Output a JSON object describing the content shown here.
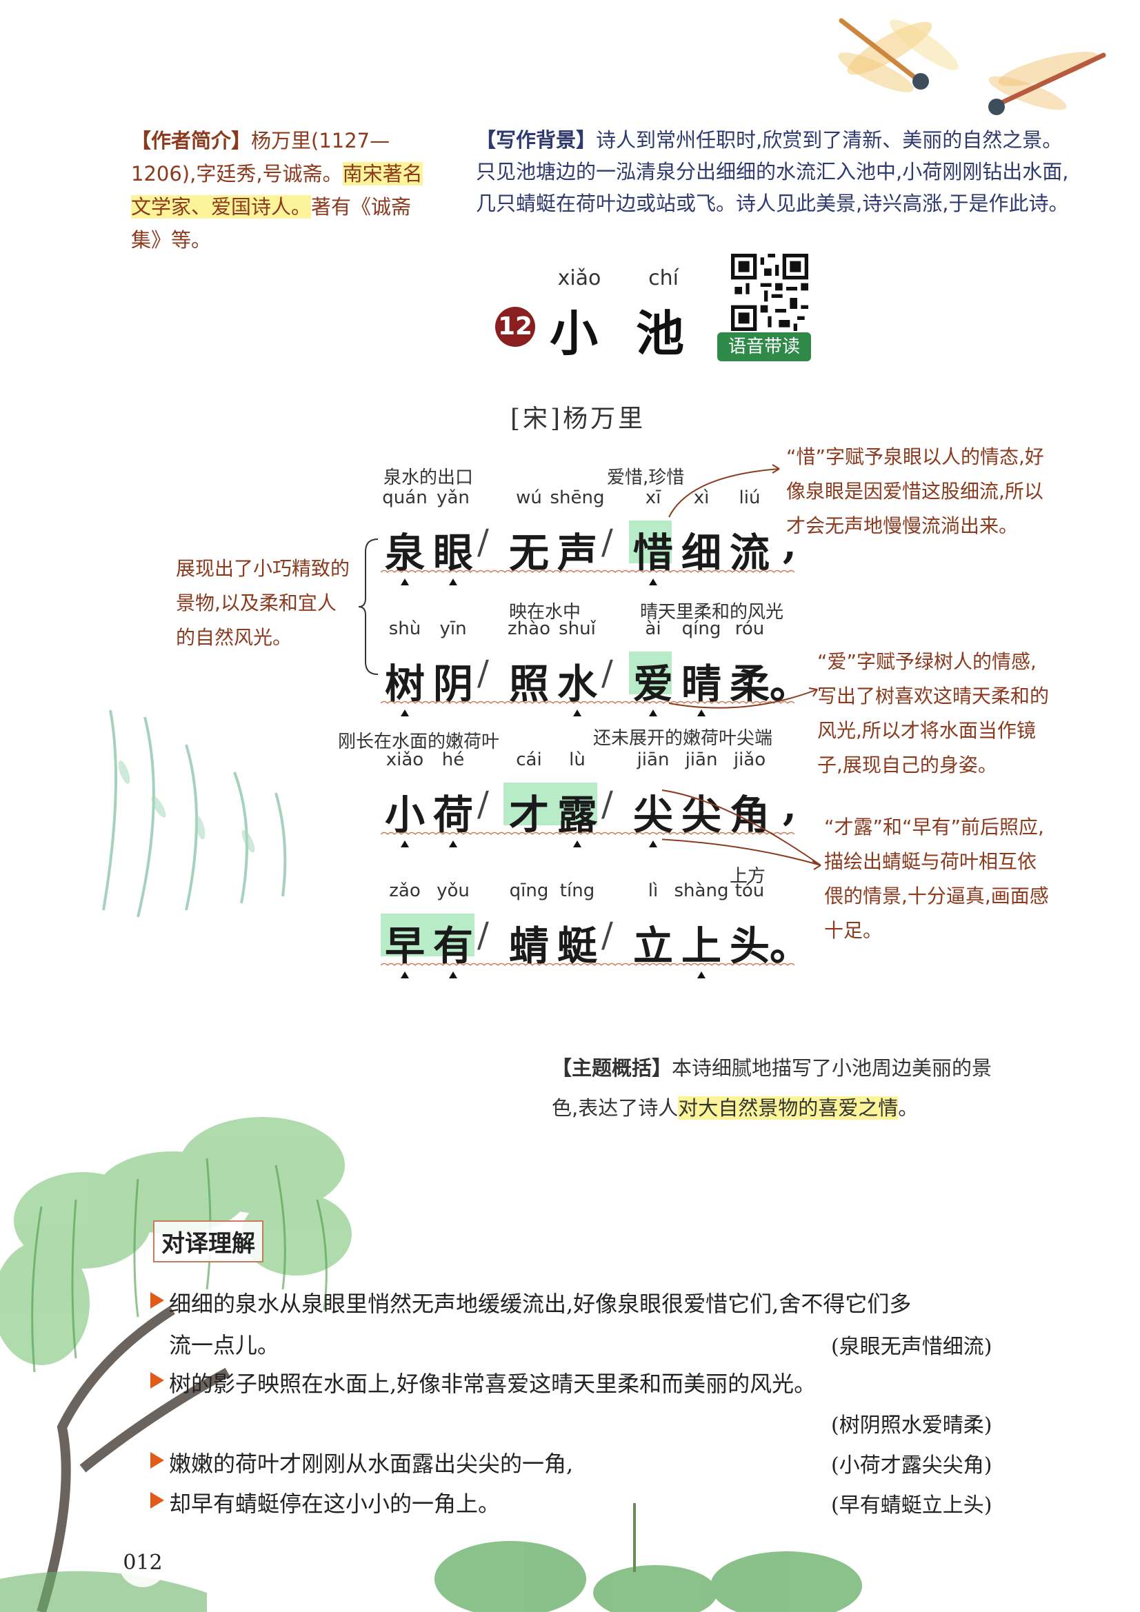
{
  "author_intro": {
    "tag": "【作者简介】",
    "text_a": "杨万里(1127—1206),字廷秀,号诚斋。",
    "text_hl": "南宋著名文学家、爱国诗人。",
    "text_b": "著有《诚斋集》等。"
  },
  "background": {
    "tag": "【写作背景】",
    "text": "诗人到常州任职时,欣赏到了清新、美丽的自然之景。只见池塘边的一泓清泉分出细细的水流汇入池中,小荷刚刚钻出水面,几只蜻蜓在荷叶边或站或飞。诗人见此美景,诗兴高涨,于是作此诗。"
  },
  "title": {
    "number": "12",
    "char1": "小",
    "char2": "池",
    "pinyin1": "xiǎo",
    "pinyin2": "chí",
    "audio_label": "语音带读"
  },
  "author_line": "[宋]杨万里",
  "poem": {
    "line1": {
      "chars": [
        "泉",
        "眼",
        "无",
        "声",
        "惜",
        "细",
        "流"
      ],
      "pinyin": [
        "quán",
        "yǎn",
        "wú",
        "shēng",
        "xī",
        "xì",
        "liú"
      ],
      "punct": ",",
      "gloss1": "泉水的出口",
      "gloss2": "爱惜,珍惜"
    },
    "line2": {
      "chars": [
        "树",
        "阴",
        "照",
        "水",
        "爱",
        "晴",
        "柔"
      ],
      "pinyin": [
        "shù",
        "yīn",
        "zhào",
        "shuǐ",
        "ài",
        "qíng",
        "róu"
      ],
      "punct": "。",
      "gloss1": "映在水中",
      "gloss2": "晴天里柔和的风光"
    },
    "line3": {
      "chars": [
        "小",
        "荷",
        "才",
        "露",
        "尖",
        "尖",
        "角"
      ],
      "pinyin": [
        "xiǎo",
        "hé",
        "cái",
        "lù",
        "jiān",
        "jiān",
        "jiǎo"
      ],
      "punct": ",",
      "gloss1": "刚长在水面的嫩荷叶",
      "gloss2": "还未展开的嫩荷叶尖端"
    },
    "line4": {
      "chars": [
        "早",
        "有",
        "蜻",
        "蜓",
        "立",
        "上",
        "头"
      ],
      "pinyin": [
        "zǎo",
        "yǒu",
        "qīng",
        "tíng",
        "lì",
        "shàng",
        "tóu"
      ],
      "punct": "。",
      "gloss1": "上方"
    }
  },
  "left_note": "展现出了小巧精致的景物,以及柔和宜人的自然风光。",
  "right_notes": {
    "n1": "“惜”字赋予泉眼以人的情态,好像泉眼是因爱惜这股细流,所以才会无声地慢慢流淌出来。",
    "n2": "“爱”字赋予绿树人的情感,写出了树喜欢这晴天柔和的风光,所以才将水面当作镜子,展现自己的身姿。",
    "n3": "“才露”和“早有”前后照应,描绘出蜻蜓与荷叶相互依偎的情景,十分逼真,画面感十足。"
  },
  "theme": {
    "tag": "【主题概括】",
    "text_a": "本诗细腻地描写了小池周边美丽的景色,表达了诗人",
    "text_hl": "对大自然景物的喜爱之情",
    "text_b": "。"
  },
  "translation": {
    "heading": "对译理解",
    "items": [
      {
        "text": "细细的泉水从泉眼里悄然无声地缓缓流出,好像泉眼很爱惜它们,舍不得它们多",
        "text2": "流一点儿。",
        "src": "(泉眼无声惜细流)"
      },
      {
        "text": "树的影子映照在水面上,好像非常喜爱这晴天里柔和而美丽的风光。",
        "src": "(树阴照水爱晴柔)"
      },
      {
        "text": "嫩嫩的荷叶才刚刚从水面露出尖尖的一角,",
        "src": "(小荷才露尖尖角)"
      },
      {
        "text": "却早有蜻蜓停在这小小的一角上。",
        "src": "(早有蜻蜓立上头)"
      }
    ]
  },
  "page_number": "012",
  "colors": {
    "accent_red": "#8b1e1e",
    "note_brown": "#8b3a1e",
    "highlight_yellow": "#fbf49a",
    "highlight_green": "#b8ecc8",
    "badge_green": "#2f8a4a"
  }
}
